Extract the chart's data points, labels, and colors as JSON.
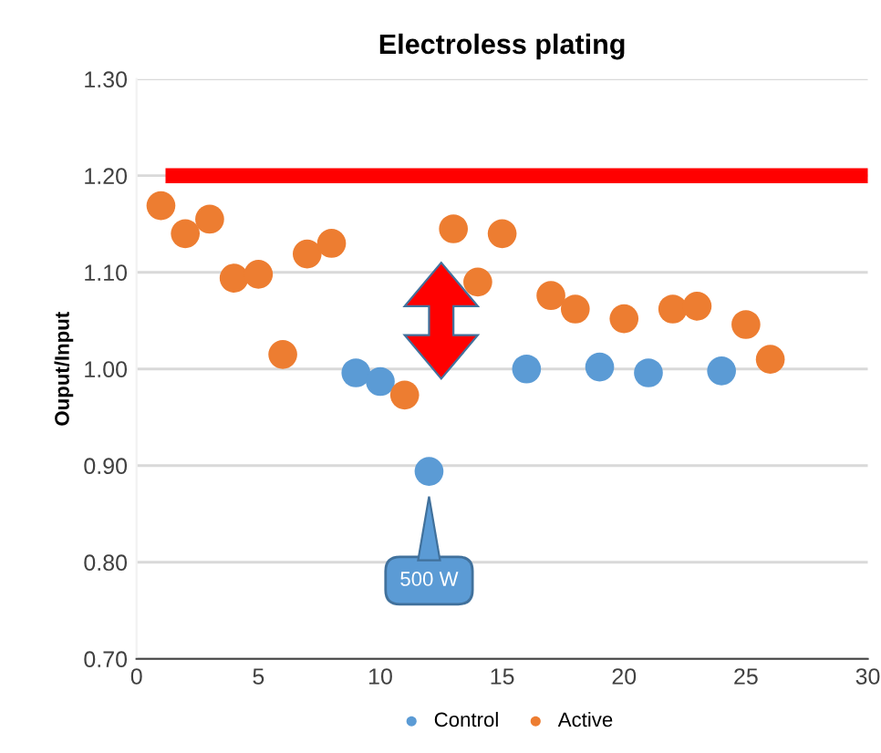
{
  "chart_data": {
    "type": "scatter",
    "title": "Electroless plating",
    "ylabel": "Ouput/Input",
    "xlim": [
      0,
      30
    ],
    "xticks": [
      0,
      5,
      10,
      15,
      20,
      25,
      30
    ],
    "ylim": [
      0.7,
      1.3
    ],
    "yticks": [
      {
        "value": 0.7,
        "label": "0.70"
      },
      {
        "value": 0.8,
        "label": "0.80"
      },
      {
        "value": 0.9,
        "label": "0.90"
      },
      {
        "value": 1.0,
        "label": "1.00"
      },
      {
        "value": 1.1,
        "label": "1.10"
      },
      {
        "value": 1.2,
        "label": "1.20"
      },
      {
        "value": 1.3,
        "label": "1.30"
      }
    ],
    "grid": "y",
    "legend": "bottom",
    "marker": "circle",
    "series": [
      {
        "name": "Control",
        "color": "#5b9bd5",
        "x": [
          9,
          10,
          12,
          16,
          19,
          21,
          24
        ],
        "values": [
          0.996,
          0.987,
          0.894,
          1.0,
          1.002,
          0.996,
          0.998
        ]
      },
      {
        "name": "Active",
        "color": "#ed7d31",
        "x": [
          1,
          2,
          3,
          4,
          5,
          6,
          7,
          8,
          11,
          13,
          14,
          15,
          17,
          18,
          20,
          22,
          23,
          25,
          26
        ],
        "values": [
          1.169,
          1.14,
          1.155,
          1.094,
          1.098,
          1.015,
          1.119,
          1.13,
          0.973,
          1.145,
          1.09,
          1.14,
          1.076,
          1.062,
          1.052,
          1.062,
          1.065,
          1.046,
          1.01
        ]
      },
      {
        "type": "line",
        "marker": "none",
        "color": "#ff0000",
        "x": [
          1.5,
          30
        ],
        "values": [
          1.2,
          1.2
        ]
      }
    ],
    "annotations": [
      "500 W"
    ]
  }
}
